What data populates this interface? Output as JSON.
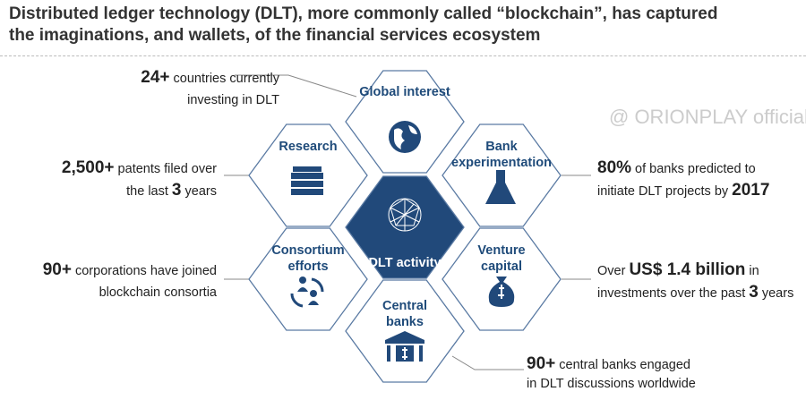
{
  "title": {
    "line1": "Distributed ledger technology (DLT), more commonly called “blockchain”, has captured",
    "line2": "the imaginations, and wallets, of the financial services ecosystem"
  },
  "colors": {
    "navy": "#21497a",
    "hex_stroke": "#5a7aa3",
    "connector": "#888888"
  },
  "center": {
    "label": "DLT activity",
    "icon": "network-globe-icon"
  },
  "hexes": {
    "global": {
      "label": "Global interest",
      "icon": "globe-icon"
    },
    "research": {
      "label": "Research",
      "icon": "books-icon"
    },
    "bank": {
      "label": "Bank experimentation",
      "icon": "flask-icon"
    },
    "consortium": {
      "label": "Consortium efforts",
      "icon": "people-cycle-icon"
    },
    "venture": {
      "label": "Venture capital",
      "icon": "money-bag-icon"
    },
    "central": {
      "label": "Central banks",
      "icon": "bank-building-icon"
    }
  },
  "notes": {
    "global": {
      "num": "24+",
      "l1": " countries currently",
      "l2": "investing in DLT"
    },
    "research": {
      "num": "2,500+",
      "l1": " patents filed over",
      "l2a": "the last ",
      "num2": "3",
      "l2b": " years"
    },
    "bank": {
      "num": "80%",
      "l1": " of banks predicted to",
      "l2a": "initiate DLT projects by ",
      "num2": "2017"
    },
    "consortium": {
      "num": "90+",
      "l1": " corporations have joined",
      "l2": "blockchain consortia"
    },
    "venture": {
      "pre": "Over ",
      "num": "US$ 1.4 billion",
      "l1": " in",
      "l2a": "investments over the past ",
      "num2": "3",
      "l2b": " years"
    },
    "central": {
      "num": "90+",
      "l1": " central banks engaged",
      "l2": "in DLT discussions worldwide"
    }
  },
  "watermark": "@ ORIONPLAY official"
}
